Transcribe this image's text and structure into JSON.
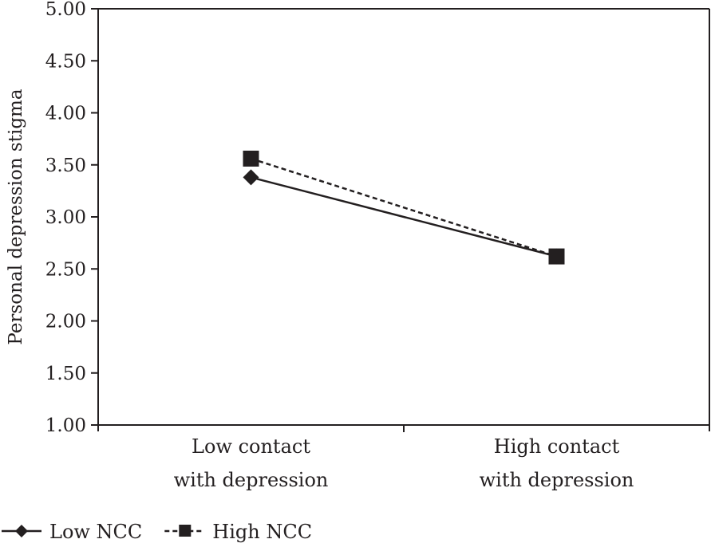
{
  "chart_data": {
    "type": "line",
    "title": "",
    "xlabel": "",
    "ylabel": "Personal depression stigma",
    "ylim": [
      1.0,
      5.0
    ],
    "yticks": [
      "1.00",
      "1.50",
      "2.00",
      "2.50",
      "3.00",
      "3.50",
      "4.00",
      "4.50",
      "5.00"
    ],
    "ytick_values": [
      1.0,
      1.5,
      2.0,
      2.5,
      3.0,
      3.5,
      4.0,
      4.5,
      5.0
    ],
    "categories": [
      [
        "Low contact",
        "with depression"
      ],
      [
        "High contact",
        "with depression"
      ]
    ],
    "series": [
      {
        "name": "Low NCC",
        "marker": "diamond",
        "line": "solid",
        "values": [
          3.38,
          2.62
        ]
      },
      {
        "name": "High NCC",
        "marker": "square",
        "line": "dashed",
        "values": [
          3.56,
          2.62
        ]
      }
    ],
    "grid": false,
    "legend": "bottom-left",
    "color": "#231f20"
  }
}
